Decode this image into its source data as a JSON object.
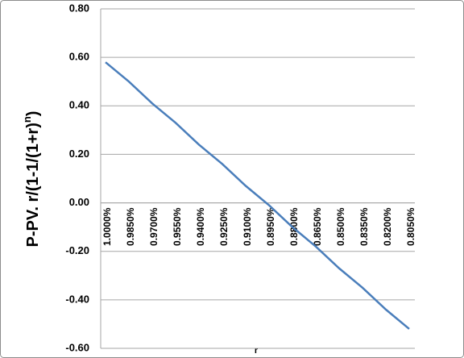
{
  "chart_data": {
    "type": "line",
    "ylabel": {
      "main": "P-PV. r/(1-1/(1+r)",
      "sup": "n",
      "end": ")"
    },
    "xlabel": "r",
    "categories": [
      "1.0000%",
      "0.9850%",
      "0.9700%",
      "0.9550%",
      "0.9400%",
      "0.9250%",
      "0.9100%",
      "0.8950%",
      "0.8800%",
      "0.8650%",
      "0.8500%",
      "0.8350%",
      "0.8200%",
      "0.8050%"
    ],
    "series": [
      {
        "color": "#4a7ebb",
        "values": [
          0.58,
          0.5,
          0.41,
          0.33,
          0.24,
          0.16,
          0.07,
          -0.01,
          -0.1,
          -0.18,
          -0.27,
          -0.35,
          -0.44,
          -0.52
        ]
      }
    ],
    "ylim": [
      -0.6,
      0.8
    ],
    "yticks": [
      {
        "value": -0.6,
        "label": "-0.60"
      },
      {
        "value": -0.4,
        "label": "-0.40"
      },
      {
        "value": -0.2,
        "label": "-0.20"
      },
      {
        "value": 0,
        "label": "0.00"
      },
      {
        "value": 0.2,
        "label": "0.20"
      },
      {
        "value": 0.4,
        "label": "0.40"
      },
      {
        "value": 0.6,
        "label": "0.60"
      },
      {
        "value": 0.8,
        "label": "0.80"
      }
    ],
    "grid": true
  }
}
